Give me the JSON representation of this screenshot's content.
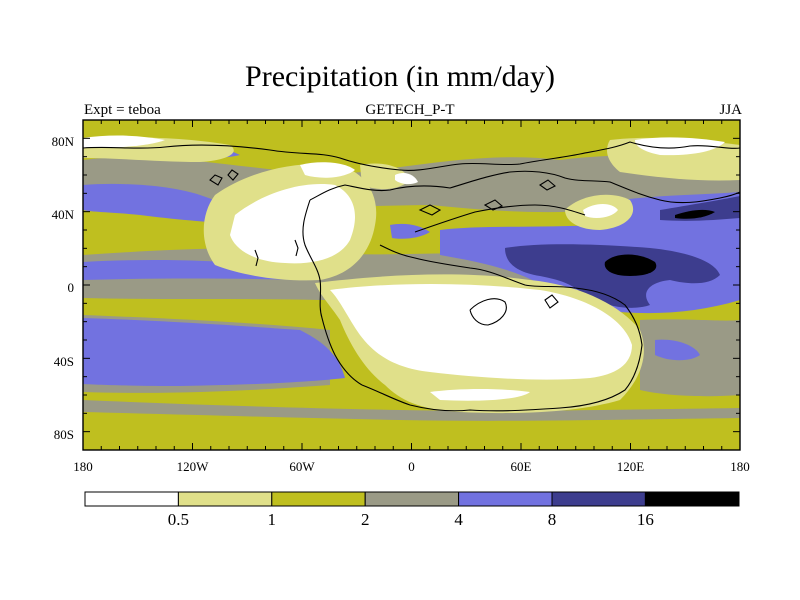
{
  "chart_data": {
    "type": "heatmap",
    "title": "Precipitation (in mm/day)",
    "subtitle_left": "Expt = teboa",
    "subtitle_center": "GETECH_P-T",
    "subtitle_right": "JJA",
    "x_ticks": [
      "180",
      "120W",
      "60W",
      "0",
      "60E",
      "120E",
      "180"
    ],
    "x_values": [
      -180,
      -120,
      -60,
      0,
      60,
      120,
      180
    ],
    "y_ticks": [
      "80N",
      "40N",
      "0",
      "40S",
      "80S"
    ],
    "y_values": [
      80,
      40,
      0,
      -40,
      -80
    ],
    "xlim": [
      -180,
      180
    ],
    "ylim": [
      -90,
      90
    ],
    "levels": [
      "0.5",
      "1",
      "2",
      "4",
      "8",
      "16"
    ],
    "level_values": [
      0.5,
      1,
      2,
      4,
      8,
      16
    ],
    "colors": [
      "#ffffff",
      "#e0e08a",
      "#bfbf1f",
      "#9a9a86",
      "#7272e0",
      "#3d3d8e",
      "#000000"
    ]
  }
}
